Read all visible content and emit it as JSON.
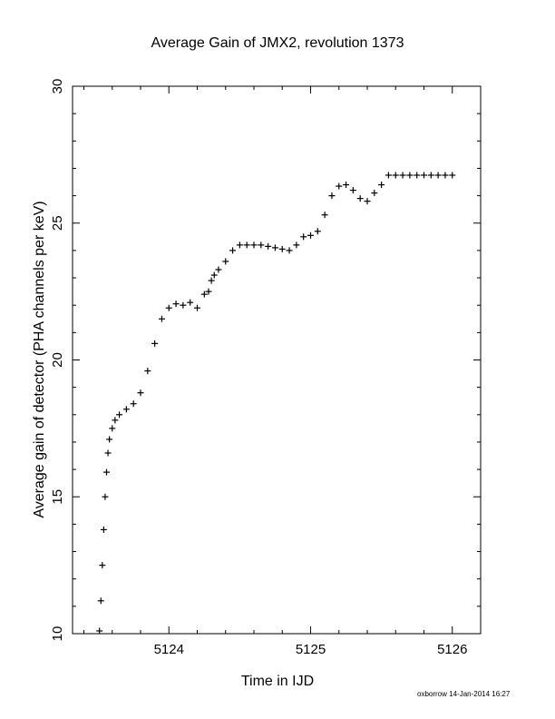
{
  "chart_data": {
    "type": "scatter",
    "title": "Average Gain of JMX2, revolution 1373",
    "xlabel": "Time in IJD",
    "ylabel": "Average gain of detector (PHA channels per keV)",
    "xlim": [
      5123.32,
      5126.2
    ],
    "ylim": [
      10,
      30
    ],
    "x_ticks": [
      5124,
      5125,
      5126
    ],
    "x_tick_labels": [
      "5124",
      "5125",
      "5126"
    ],
    "y_ticks": [
      10,
      15,
      20,
      25,
      30
    ],
    "y_tick_labels": [
      "10",
      "15",
      "20",
      "25",
      "30"
    ],
    "grid": false,
    "legend": "none",
    "marker": "+",
    "color": "#000000",
    "series": [
      {
        "x": [
          5123.51,
          5123.52,
          5123.53,
          5123.54,
          5123.55,
          5123.56,
          5123.57,
          5123.58,
          5123.6,
          5123.62,
          5123.65,
          5123.7,
          5123.75,
          5123.8,
          5123.85,
          5123.9,
          5123.95,
          5124.0,
          5124.05,
          5124.1,
          5124.15,
          5124.2,
          5124.25,
          5124.28,
          5124.3,
          5124.32,
          5124.35,
          5124.4,
          5124.45,
          5124.5,
          5124.55,
          5124.6,
          5124.65,
          5124.7,
          5124.75,
          5124.8,
          5124.85,
          5124.9,
          5124.95,
          5125.0,
          5125.05,
          5125.1,
          5125.15,
          5125.2,
          5125.25,
          5125.3,
          5125.35,
          5125.4,
          5125.45,
          5125.5,
          5125.55,
          5125.6,
          5125.65,
          5125.7,
          5125.75,
          5125.8,
          5125.85,
          5125.9,
          5125.95,
          5126.0
        ],
        "y": [
          10.1,
          11.2,
          12.5,
          13.8,
          15.0,
          15.9,
          16.6,
          17.1,
          17.5,
          17.8,
          18.0,
          18.2,
          18.4,
          18.8,
          19.6,
          20.6,
          21.5,
          21.9,
          22.05,
          22.0,
          22.1,
          21.9,
          22.4,
          22.5,
          22.9,
          23.1,
          23.3,
          23.6,
          24.0,
          24.2,
          24.2,
          24.2,
          24.2,
          24.15,
          24.1,
          24.05,
          24.0,
          24.2,
          24.5,
          24.55,
          24.7,
          25.3,
          26.0,
          26.35,
          26.4,
          26.2,
          25.9,
          25.8,
          26.1,
          26.4,
          26.75,
          26.75,
          26.75,
          26.75,
          26.75,
          26.75,
          26.75,
          26.75,
          26.75,
          26.75
        ]
      }
    ]
  },
  "footer": {
    "stamp": "oxborrow 14-Jan-2014 16:27"
  }
}
